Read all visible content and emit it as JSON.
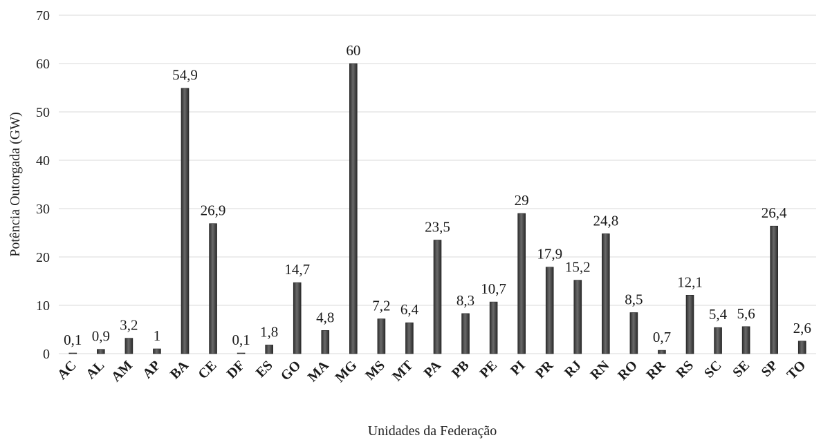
{
  "chart_data": {
    "type": "bar",
    "xlabel": "Unidades da Federação",
    "ylabel": "Potência Outorgada (GW)",
    "ylim": [
      0,
      70
    ],
    "yticks": [
      0,
      10,
      20,
      30,
      40,
      50,
      60,
      70
    ],
    "grid": true,
    "categories": [
      "AC",
      "AL",
      "AM",
      "AP",
      "BA",
      "CE",
      "DF",
      "ES",
      "GO",
      "MA",
      "MG",
      "MS",
      "MT",
      "PA",
      "PB",
      "PE",
      "PI",
      "PR",
      "RJ",
      "RN",
      "RO",
      "RR",
      "RS",
      "SC",
      "SE",
      "SP",
      "TO"
    ],
    "values": [
      0.1,
      0.9,
      3.2,
      1,
      54.9,
      26.9,
      0.1,
      1.8,
      14.7,
      4.8,
      60,
      7.2,
      6.4,
      23.5,
      8.3,
      10.7,
      29,
      17.9,
      15.2,
      24.8,
      8.5,
      0.7,
      12.1,
      5.4,
      5.6,
      26.4,
      2.6
    ],
    "value_labels": [
      "0,1",
      "0,9",
      "3,2",
      "1",
      "54,9",
      "26,9",
      "0,1",
      "1,8",
      "14,7",
      "4,8",
      "60",
      "7,2",
      "6,4",
      "23,5",
      "8,3",
      "10,7",
      "29",
      "17,9",
      "15,2",
      "24,8",
      "8,5",
      "0,7",
      "12,1",
      "5,4",
      "5,6",
      "26,4",
      "2,6"
    ],
    "bar_color": "#4a4a4a"
  }
}
